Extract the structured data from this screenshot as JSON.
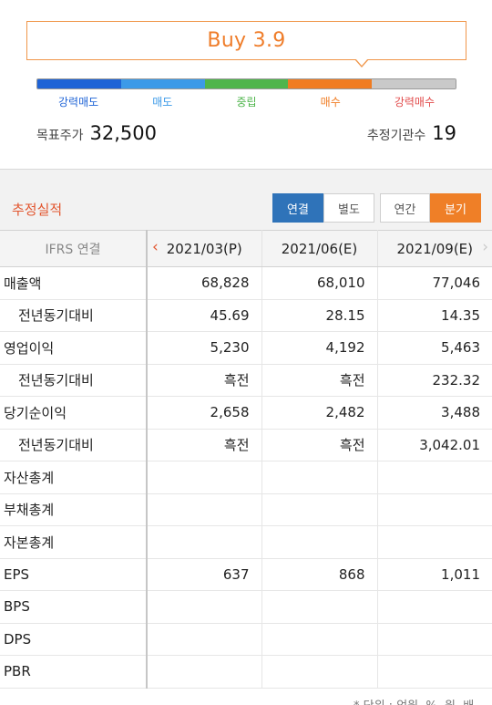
{
  "consensus": {
    "rating_text": "Buy 3.9",
    "scale_labels": [
      "강력매도",
      "매도",
      "중립",
      "매수",
      "강력매수"
    ],
    "scale_colors": [
      "#1e63d6",
      "#3c9ae8",
      "#4fb54c",
      "#f07c22",
      "#e24b4b"
    ],
    "rating_value": 3.9,
    "target_price_label": "목표주가",
    "target_price_value": "32,500",
    "analyst_count_label": "추정기관수",
    "analyst_count_value": "19"
  },
  "estimates": {
    "title": "추정실적",
    "buttons": {
      "consolidated": "연결",
      "separate": "별도",
      "annual": "연간",
      "quarterly": "분기"
    },
    "active": [
      "연결",
      "분기"
    ]
  },
  "table": {
    "header_label": "IFRS 연결",
    "columns": [
      "2021/03(P)",
      "2021/06(E)",
      "2021/09(E)"
    ],
    "rows": [
      {
        "label": "매출액",
        "sub": false,
        "values": [
          "68,828",
          "68,010",
          "77,046"
        ]
      },
      {
        "label": "전년동기대비",
        "sub": true,
        "values": [
          "45.69",
          "28.15",
          "14.35"
        ]
      },
      {
        "label": "영업이익",
        "sub": false,
        "values": [
          "5,230",
          "4,192",
          "5,463"
        ]
      },
      {
        "label": "전년동기대비",
        "sub": true,
        "values": [
          "흑전",
          "흑전",
          "232.32"
        ]
      },
      {
        "label": "당기순이익",
        "sub": false,
        "values": [
          "2,658",
          "2,482",
          "3,488"
        ]
      },
      {
        "label": "전년동기대비",
        "sub": true,
        "values": [
          "흑전",
          "흑전",
          "3,042.01"
        ]
      },
      {
        "label": "자산총계",
        "sub": false,
        "values": [
          "",
          "",
          ""
        ]
      },
      {
        "label": "부채총계",
        "sub": false,
        "values": [
          "",
          "",
          ""
        ]
      },
      {
        "label": "자본총계",
        "sub": false,
        "values": [
          "",
          "",
          ""
        ]
      },
      {
        "label": "EPS",
        "sub": false,
        "values": [
          "637",
          "868",
          "1,011"
        ]
      },
      {
        "label": "BPS",
        "sub": false,
        "values": [
          "",
          "",
          ""
        ]
      },
      {
        "label": "DPS",
        "sub": false,
        "values": [
          "",
          "",
          ""
        ]
      },
      {
        "label": "PBR",
        "sub": false,
        "values": [
          "",
          "",
          ""
        ]
      }
    ]
  },
  "footnote": "* 단위 : 억원, %, 원, 배"
}
